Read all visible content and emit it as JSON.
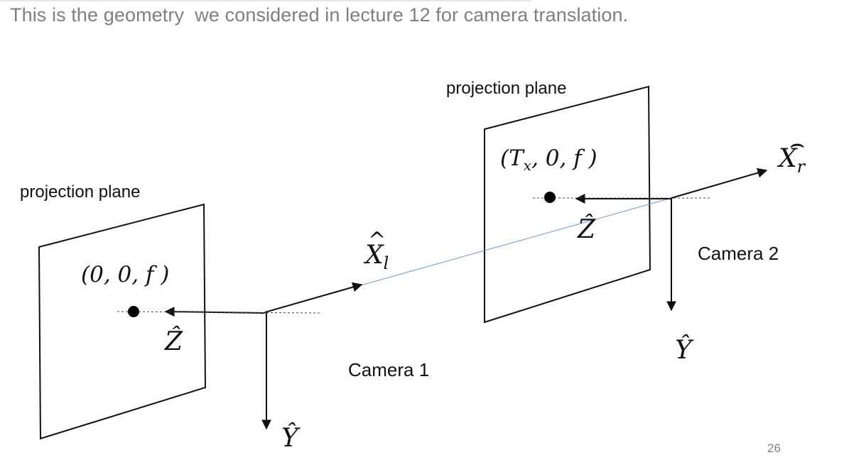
{
  "slide": {
    "heading": "This is the geometry  we considered in lecture 12 for camera translation.",
    "page_number": "26"
  },
  "camera1": {
    "label": "Camera 1",
    "plane_label": "projection plane",
    "point_label": "(0, 0, f )",
    "axis_x": "X̂l",
    "axis_x_base": "X",
    "axis_x_sub": "l",
    "axis_y": "Ŷ",
    "axis_z": "Ẑ"
  },
  "camera2": {
    "label": "Camera 2",
    "plane_label": "projection plane",
    "point_label": "(Tx, 0, f )",
    "point_label_open": "(T",
    "point_label_sub": "x",
    "point_label_close": ", 0, f )",
    "axis_x": "X̂r",
    "axis_x_base": "X",
    "axis_x_sub": "r",
    "axis_y": "Ŷ",
    "axis_z": "Ẑ"
  },
  "colors": {
    "stroke": "#111111",
    "baseline": "#6f94c8",
    "heading": "#7f7f7f",
    "dashed": "#444444"
  }
}
